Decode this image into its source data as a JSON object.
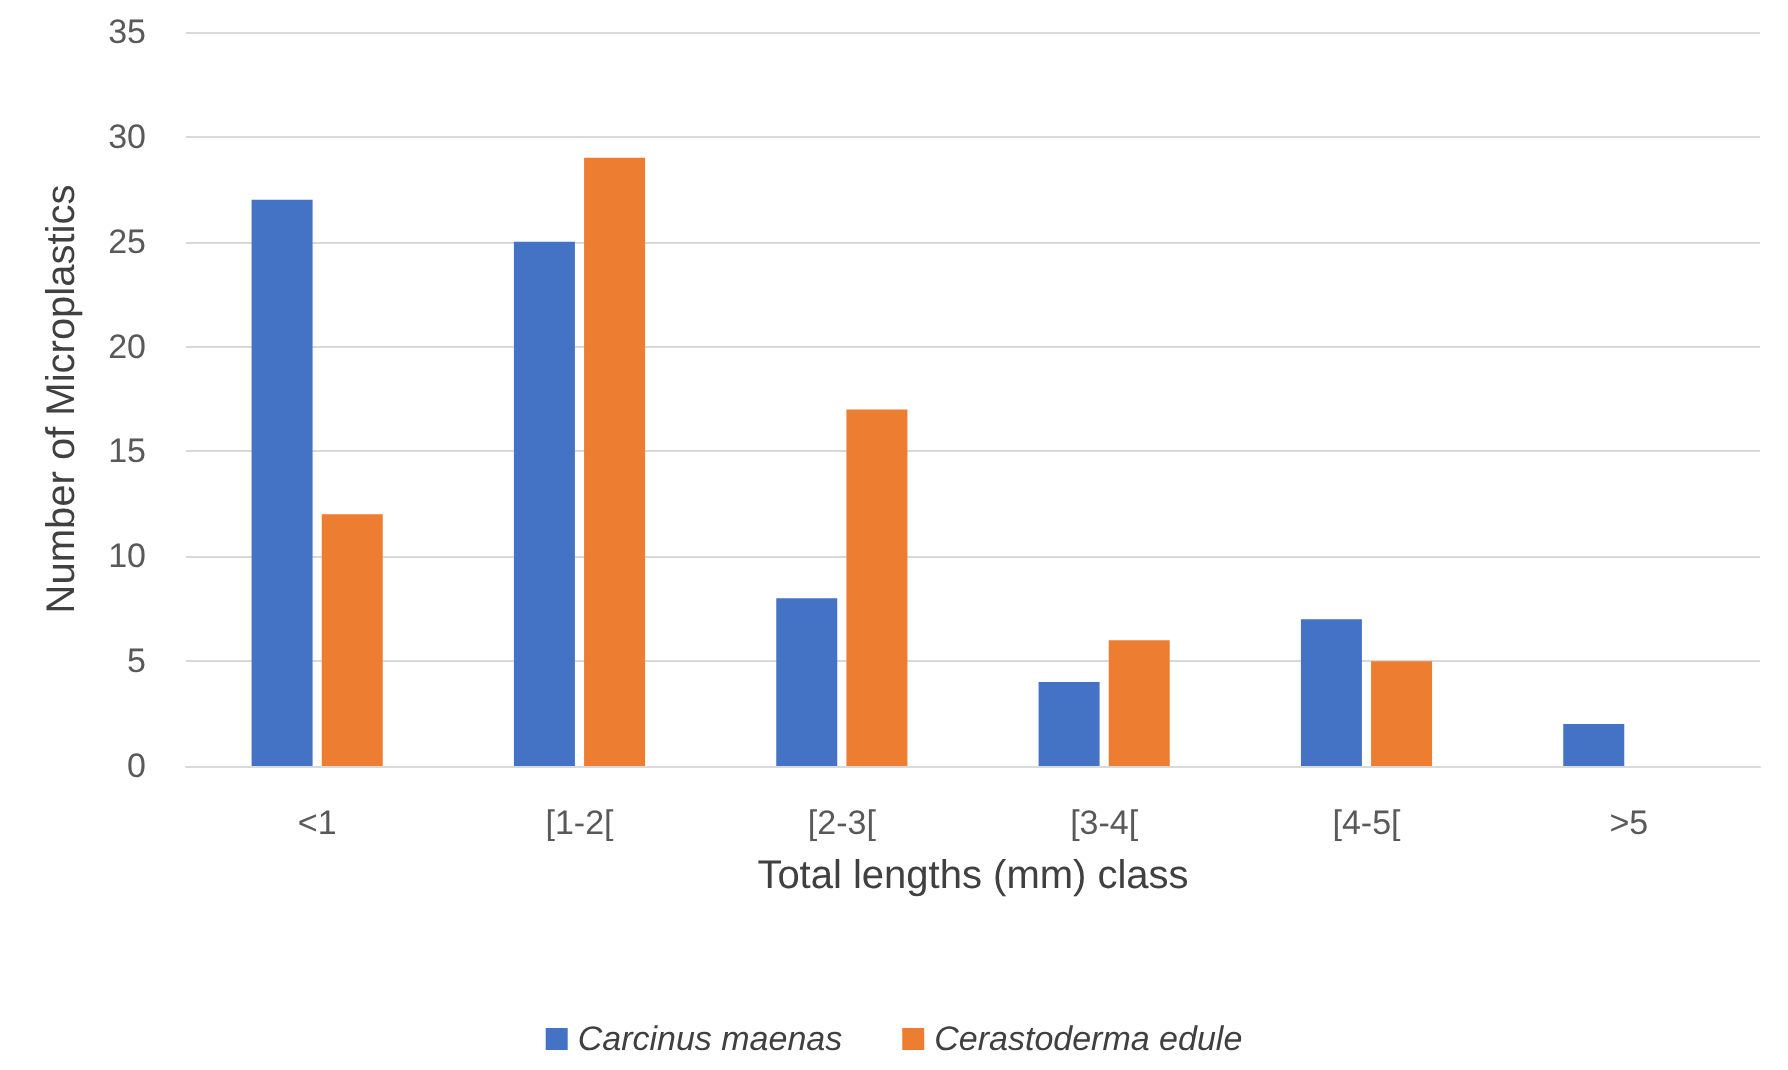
{
  "chart_data": {
    "type": "bar",
    "xlabel": "Total lengths (mm) class",
    "ylabel": "Number of Microplastics",
    "categories": [
      "<1",
      "[1-2[",
      "[2-3[",
      "[3-4[",
      "[4-5[",
      ">5"
    ],
    "series": [
      {
        "name": "Carcinus maenas",
        "color": "#4472c4",
        "values": [
          27,
          25,
          8,
          4,
          7,
          2
        ]
      },
      {
        "name": "Cerastoderma edule",
        "color": "#ed7d31",
        "values": [
          12,
          29,
          17,
          6,
          5,
          0
        ]
      }
    ],
    "ylim": [
      0,
      35
    ],
    "yticks": [
      0,
      5,
      10,
      15,
      20,
      25,
      30,
      35
    ],
    "grid": "y",
    "legend": "bottom"
  }
}
